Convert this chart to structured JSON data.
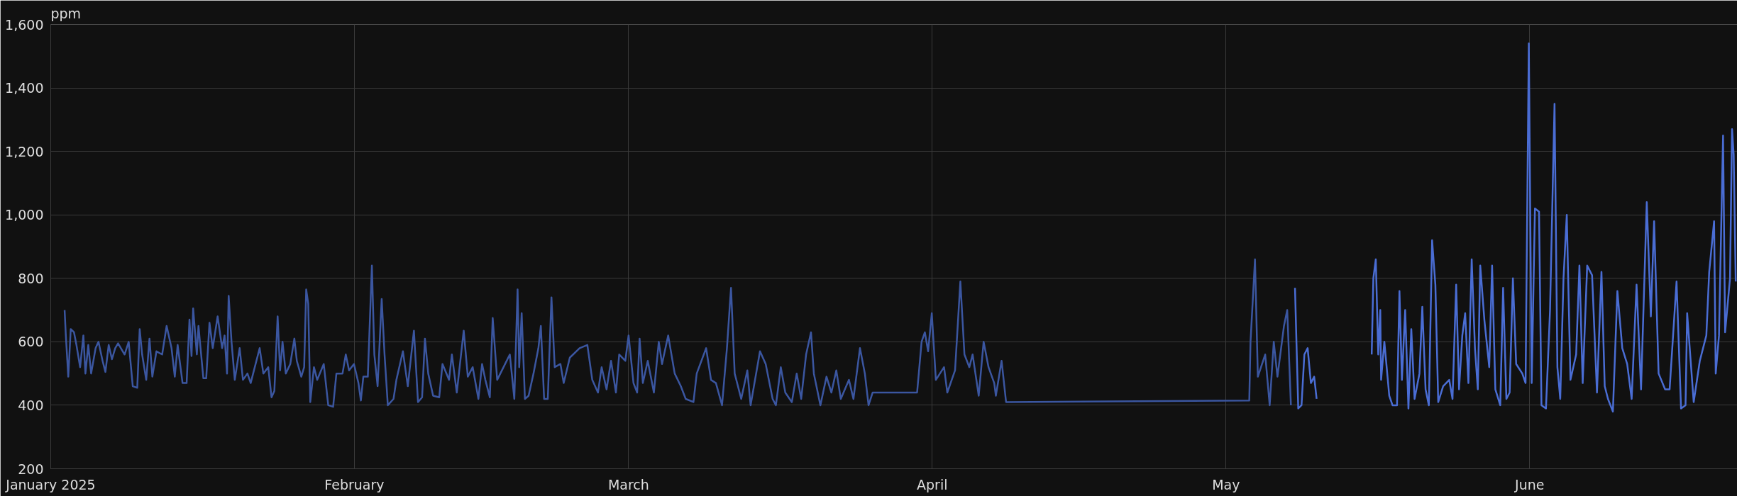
{
  "chart_data": {
    "type": "line",
    "ylabel": "ppm",
    "grid": true,
    "xlim": [
      "2025-01-01T00:00",
      "2025-06-22T05:00"
    ],
    "xticks": [
      {
        "value": "2025-01-01",
        "label": "January 2025"
      },
      {
        "value": "2025-02-01",
        "label": "February"
      },
      {
        "value": "2025-03-01",
        "label": "March"
      },
      {
        "value": "2025-04-01",
        "label": "April"
      },
      {
        "value": "2025-05-01",
        "label": "May"
      },
      {
        "value": "2025-06-01",
        "label": "June"
      }
    ],
    "ylim": [
      200,
      1600
    ],
    "yticks": [
      {
        "value": 200,
        "label": "200"
      },
      {
        "value": 400,
        "label": "400"
      },
      {
        "value": 600,
        "label": "600"
      },
      {
        "value": 800,
        "label": "800"
      },
      {
        "value": 1000,
        "label": "1,000"
      },
      {
        "value": 1200,
        "label": "1,200"
      },
      {
        "value": 1400,
        "label": "1,400"
      },
      {
        "value": 1600,
        "label": "1,600"
      }
    ],
    "series": [
      {
        "color": "#3b56a0",
        "x": [
          "2025-01-02T10:00",
          "2025-01-02T13:00",
          "2025-01-02T19:00",
          "2025-01-03T01:00",
          "2025-01-03T09:00",
          "2025-01-03T15:00",
          "2025-01-04T00:00",
          "2025-01-04T08:00",
          "2025-01-04T13:00",
          "2025-01-04T20:00",
          "2025-01-05T03:00",
          "2025-01-05T14:00",
          "2025-01-05T21:00",
          "2025-01-06T07:00",
          "2025-01-06T14:00",
          "2025-01-06T22:00",
          "2025-01-07T06:00",
          "2025-01-07T14:00",
          "2025-01-07T21:00",
          "2025-01-08T13:00",
          "2025-01-08T23:00",
          "2025-01-09T09:00",
          "2025-01-09T20:00",
          "2025-01-10T02:00",
          "2025-01-10T08:00",
          "2025-01-10T18:00",
          "2025-01-11T02:00",
          "2025-01-11T09:00",
          "2025-01-11T19:00",
          "2025-01-12T09:00",
          "2025-01-12T20:00",
          "2025-01-13T08:00",
          "2025-01-13T16:00",
          "2025-01-13T23:00",
          "2025-01-14T11:00",
          "2025-01-14T21:00",
          "2025-01-15T04:00",
          "2025-01-15T09:00",
          "2025-01-15T13:00",
          "2025-01-15T22:00",
          "2025-01-16T02:00",
          "2025-01-16T14:00",
          "2025-01-16T21:00",
          "2025-01-17T05:00",
          "2025-01-17T13:00",
          "2025-01-18T01:00",
          "2025-01-18T12:00",
          "2025-01-18T18:00",
          "2025-01-19T00:00",
          "2025-01-19T04:00",
          "2025-01-19T11:00",
          "2025-01-19T19:00",
          "2025-01-20T07:00",
          "2025-01-20T15:00",
          "2025-01-21T02:00",
          "2025-01-21T10:00",
          "2025-01-21T18:00",
          "2025-01-22T08:00",
          "2025-01-22T17:00",
          "2025-01-23T05:00",
          "2025-01-23T13:00",
          "2025-01-23T20:00",
          "2025-01-24T04:00",
          "2025-01-24T10:00",
          "2025-01-24T16:00",
          "2025-01-25T00:00",
          "2025-01-25T11:00",
          "2025-01-25T21:00",
          "2025-01-26T03:00",
          "2025-01-26T14:00",
          "2025-01-26T21:00",
          "2025-01-27T02:00",
          "2025-01-27T07:00",
          "2025-01-27T12:00",
          "2025-01-27T21:00",
          "2025-01-28T05:00",
          "2025-01-28T21:00",
          "2025-01-29T08:00",
          "2025-01-29T20:00",
          "2025-01-30T04:00",
          "2025-01-30T19:00",
          "2025-01-31T03:00",
          "2025-01-31T11:00",
          "2025-01-31T23:00",
          "2025-02-01T10:00",
          "2025-02-01T16:00",
          "2025-02-01T22:00",
          "2025-02-02T09:00",
          "2025-02-02T19:00",
          "2025-02-03T01:00",
          "2025-02-03T09:00",
          "2025-02-03T19:00",
          "2025-02-04T02:00",
          "2025-02-04T10:00",
          "2025-02-05T00:00",
          "2025-02-05T07:00",
          "2025-02-05T23:00",
          "2025-02-06T11:00",
          "2025-02-07T02:00",
          "2025-02-07T12:00",
          "2025-02-07T22:00",
          "2025-02-08T05:00",
          "2025-02-08T13:00",
          "2025-02-09T01:00",
          "2025-02-09T16:00",
          "2025-02-10T00:00",
          "2025-02-10T16:00",
          "2025-02-10T23:00",
          "2025-02-11T11:00",
          "2025-02-12T04:00",
          "2025-02-12T14:00",
          "2025-02-13T02:00",
          "2025-02-13T16:00",
          "2025-02-14T01:00",
          "2025-02-14T09:00",
          "2025-02-14T20:00",
          "2025-02-15T03:00",
          "2025-02-15T14:00",
          "2025-02-16T21:00",
          "2025-02-17T08:00",
          "2025-02-17T16:00",
          "2025-02-17T20:00",
          "2025-02-18T02:00",
          "2025-02-18T10:00",
          "2025-02-18T19:00",
          "2025-02-19T07:00",
          "2025-02-19T19:00",
          "2025-02-20T01:00",
          "2025-02-20T09:00",
          "2025-02-20T18:00",
          "2025-02-21T03:00",
          "2025-02-21T11:00",
          "2025-02-22T01:00",
          "2025-02-22T09:00",
          "2025-02-23T00:00",
          "2025-02-24T00:00",
          "2025-02-24T19:00",
          "2025-02-25T07:00",
          "2025-02-25T21:00",
          "2025-02-26T06:00",
          "2025-02-26T18:00",
          "2025-02-27T05:00",
          "2025-02-27T17:00",
          "2025-02-28T01:00",
          "2025-02-28T16:00",
          "2025-03-01T00:00",
          "2025-03-01T12:00",
          "2025-03-01T21:00",
          "2025-03-02T03:00",
          "2025-03-02T11:00",
          "2025-03-02T23:00",
          "2025-03-03T14:00",
          "2025-03-04T02:00",
          "2025-03-04T10:00",
          "2025-03-05T01:00",
          "2025-03-05T17:00",
          "2025-03-06T08:00",
          "2025-03-06T20:00",
          "2025-03-07T15:00",
          "2025-03-07T23:00",
          "2025-03-08T22:00",
          "2025-03-09T10:00",
          "2025-03-09T22:00",
          "2025-03-10T13:00",
          "2025-03-11T01:00",
          "2025-03-11T11:00",
          "2025-03-11T20:00",
          "2025-03-12T12:00",
          "2025-03-13T03:00",
          "2025-03-13T11:00",
          "2025-03-14T10:00",
          "2025-03-15T00:00",
          "2025-03-15T17:00",
          "2025-03-16T01:00",
          "2025-03-16T13:00",
          "2025-03-17T00:00",
          "2025-03-17T16:00",
          "2025-03-18T04:00",
          "2025-03-18T15:00",
          "2025-03-19T03:00",
          "2025-03-19T15:00",
          "2025-03-19T22:00",
          "2025-03-20T14:00",
          "2025-03-21T05:00",
          "2025-03-21T17:00",
          "2025-03-22T05:00",
          "2025-03-22T16:00",
          "2025-03-23T12:00",
          "2025-03-23T23:00",
          "2025-03-24T15:00",
          "2025-03-25T03:00",
          "2025-03-25T12:00",
          "2025-03-25T22:00",
          "2025-03-30T11:00",
          "2025-03-30T22:00",
          "2025-03-31T06:00",
          "2025-03-31T14:00",
          "2025-03-31T23:00",
          "2025-04-01T09:00",
          "2025-04-02T05:00",
          "2025-04-02T13:00",
          "2025-04-03T08:00",
          "2025-04-03T21:00",
          "2025-04-04T07:00",
          "2025-04-04T19:00",
          "2025-04-05T03:00",
          "2025-04-05T18:00",
          "2025-04-06T06:00",
          "2025-04-06T18:00",
          "2025-04-07T08:00",
          "2025-04-07T12:00",
          "2025-04-08T02:00",
          "2025-04-08T13:00",
          "2025-05-03T09:00",
          "2025-05-03T12:00",
          "2025-05-03T23:00",
          "2025-05-04T06:00",
          "2025-05-05T00:00",
          "2025-05-05T11:00",
          "2025-05-05T21:00",
          "2025-05-06T06:00",
          "2025-05-06T22:00",
          "2025-05-07T06:00",
          "2025-05-07T15:00"
        ],
        "values": [
          700,
          620,
          490,
          640,
          630,
          590,
          520,
          620,
          500,
          590,
          500,
          580,
          600,
          540,
          505,
          590,
          545,
          580,
          595,
          560,
          600,
          460,
          455,
          640,
          560,
          480,
          610,
          490,
          570,
          560,
          650,
          580,
          490,
          590,
          470,
          470,
          670,
          555,
          705,
          560,
          650,
          485,
          485,
          660,
          580,
          680,
          580,
          620,
          500,
          745,
          600,
          480,
          580,
          480,
          500,
          470,
          510,
          580,
          500,
          520,
          425,
          445,
          680,
          510,
          600,
          500,
          530,
          610,
          540,
          490,
          520,
          765,
          720,
          410,
          520,
          480,
          530,
          400,
          395,
          500,
          500,
          560,
          510,
          530,
          470,
          415,
          490,
          490,
          840,
          560,
          460,
          735,
          560,
          400,
          420,
          480,
          570,
          460,
          635,
          410,
          425,
          610,
          500,
          430,
          425,
          530,
          480,
          560,
          440,
          635,
          490,
          520,
          420,
          530,
          480,
          425,
          675,
          480,
          560,
          420,
          765,
          520,
          690,
          420,
          430,
          500,
          580,
          650,
          420,
          420,
          740,
          520,
          530,
          470,
          550,
          580,
          590,
          480,
          440,
          520,
          450,
          540,
          440,
          560,
          540,
          620,
          470,
          440,
          610,
          470,
          540,
          440,
          600,
          530,
          620,
          500,
          460,
          420,
          410,
          500,
          580,
          480,
          470,
          400,
          580,
          770,
          500,
          420,
          510,
          400,
          570,
          530,
          420,
          400,
          520,
          440,
          410,
          500,
          420,
          560,
          630,
          500,
          400,
          490,
          440,
          510,
          420,
          480,
          420,
          580,
          500,
          400,
          440,
          440,
          600,
          630,
          570,
          690,
          480,
          520,
          440,
          510,
          790,
          560,
          520,
          560,
          430,
          600,
          520,
          470,
          430,
          540,
          410,
          415,
          600,
          860,
          490,
          560,
          400,
          600,
          490,
          650,
          700,
          400
        ]
      },
      {
        "color": "#4a6dd4",
        "x": [
          "2025-05-08T01:00",
          "2025-05-08T09:00",
          "2025-05-08T17:00",
          "2025-05-09T00:00",
          "2025-05-09T08:00",
          "2025-05-09T16:00",
          "2025-05-10T00:00",
          "2025-05-10T06:00",
          "2025-05-12T00:00",
          "2025-05-15T21:00",
          "2025-05-16T01:00",
          "2025-05-16T07:00",
          "2025-05-16T13:00",
          "2025-05-16T18:00",
          "2025-05-16T20:00",
          "2025-05-17T04:00",
          "2025-05-17T16:00",
          "2025-05-18T00:00",
          "2025-05-18T11:00",
          "2025-05-18T17:00",
          "2025-05-18T23:00",
          "2025-05-19T07:00",
          "2025-05-19T15:00",
          "2025-05-19T22:00",
          "2025-05-20T06:00",
          "2025-05-20T18:00",
          "2025-05-21T01:00",
          "2025-05-21T09:00",
          "2025-05-21T17:00",
          "2025-05-22T01:00",
          "2025-05-22T09:00",
          "2025-05-22T16:00",
          "2025-05-23T04:00",
          "2025-05-23T19:00",
          "2025-05-24T03:00",
          "2025-05-24T12:00",
          "2025-05-24T19:00",
          "2025-05-25T03:00",
          "2025-05-25T10:00",
          "2025-05-25T18:00",
          "2025-05-26T02:00",
          "2025-05-26T10:00",
          "2025-05-26T17:00",
          "2025-05-26T23:00",
          "2025-05-27T09:00",
          "2025-05-27T21:00",
          "2025-05-28T04:00",
          "2025-05-28T12:00",
          "2025-05-29T00:00",
          "2025-05-29T07:00",
          "2025-05-29T15:00",
          "2025-05-29T23:00",
          "2025-05-30T07:00",
          "2025-05-30T15:00",
          "2025-05-31T06:00",
          "2025-05-31T14:00",
          "2025-05-31T22:00",
          "2025-06-01T05:00",
          "2025-06-01T13:00",
          "2025-06-01T23:00",
          "2025-06-02T05:00",
          "2025-06-02T16:00",
          "2025-06-03T02:00",
          "2025-06-03T13:00",
          "2025-06-03T20:00",
          "2025-06-04T03:00",
          "2025-06-04T11:00",
          "2025-06-04T19:00",
          "2025-06-05T04:00",
          "2025-06-05T18:00",
          "2025-06-06T02:00",
          "2025-06-06T10:00",
          "2025-06-06T21:00",
          "2025-06-07T09:00",
          "2025-06-07T21:00",
          "2025-06-08T08:00",
          "2025-06-08T16:00",
          "2025-06-09T00:00",
          "2025-06-09T12:00",
          "2025-06-09T23:00",
          "2025-06-10T11:00",
          "2025-06-10T23:00",
          "2025-06-11T10:00",
          "2025-06-11T22:00",
          "2025-06-12T09:00",
          "2025-06-12T23:00",
          "2025-06-13T09:00",
          "2025-06-13T17:00",
          "2025-06-14T04:00",
          "2025-06-14T20:00",
          "2025-06-15T07:00",
          "2025-06-16T00:00",
          "2025-06-16T11:00",
          "2025-06-16T22:00",
          "2025-06-17T02:00",
          "2025-06-17T18:00",
          "2025-06-18T09:00",
          "2025-06-19T01:00",
          "2025-06-19T08:00",
          "2025-06-19T20:00",
          "2025-06-20T00:00",
          "2025-06-20T08:00",
          "2025-06-20T18:00",
          "2025-06-20T23:00",
          "2025-06-21T11:00",
          "2025-06-21T16:00",
          "2025-06-21T20:00",
          "2025-06-22T01:00"
        ],
        "values": [
          770,
          390,
          400,
          560,
          580,
          470,
          490,
          420,
          null,
          560,
          800,
          860,
          560,
          700,
          480,
          600,
          430,
          400,
          400,
          760,
          480,
          700,
          390,
          640,
          420,
          500,
          710,
          450,
          400,
          920,
          780,
          410,
          460,
          480,
          420,
          780,
          450,
          620,
          690,
          470,
          860,
          580,
          450,
          840,
          670,
          520,
          840,
          450,
          400,
          770,
          420,
          440,
          800,
          530,
          500,
          470,
          1540,
          470,
          1020,
          1010,
          400,
          390,
          700,
          1350,
          520,
          420,
          800,
          1000,
          480,
          560,
          840,
          470,
          840,
          810,
          440,
          820,
          460,
          420,
          380,
          760,
          580,
          530,
          420,
          780,
          450,
          1040,
          680,
          980,
          500,
          450,
          450,
          790,
          390,
          400,
          690,
          410,
          540,
          620,
          820,
          980,
          500,
          620,
          1250,
          630,
          800,
          1270,
          1190,
          790
        ]
      }
    ]
  }
}
